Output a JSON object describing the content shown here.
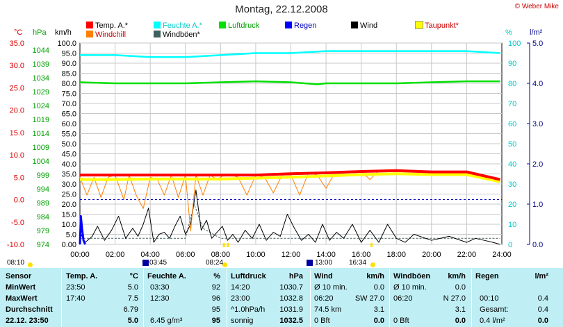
{
  "header": {
    "title": "Montag, 22.12.2008",
    "copyright": "© Weber Mike"
  },
  "legend": [
    {
      "label": "Temp. A.*",
      "color": "#ff0000"
    },
    {
      "label": "Feuchte A.*",
      "color": "#00ffff"
    },
    {
      "label": "Luftdruck",
      "color": "#00e000"
    },
    {
      "label": "Regen",
      "color": "#0000ff"
    },
    {
      "label": "Wind",
      "color": "#000000"
    },
    {
      "label": "Taupunkt*",
      "color": "#ffff00"
    },
    {
      "label": "Windchill",
      "color": "#ff8000"
    },
    {
      "label": "Windböen*",
      "color": "#406060"
    }
  ],
  "axes_units": {
    "temp": "°C",
    "pressure": "hPa",
    "wind": "km/h",
    "humidity": "%",
    "rain": "l/m²"
  },
  "chart_data": {
    "type": "line",
    "x_ticks": [
      "00:00",
      "02:00",
      "04:00",
      "06:00",
      "08:00",
      "10:00",
      "12:00",
      "14:00",
      "16:00",
      "18:00",
      "20:00",
      "22:00",
      "24:00"
    ],
    "temp_axis": [
      "35.0",
      "30.0",
      "25.0",
      "20.0",
      "15.0",
      "10.0",
      "5.0",
      "0.0",
      "-5.0",
      "-10.0"
    ],
    "pressure_axis": [
      "1044",
      "1039",
      "1034",
      "1029",
      "1024",
      "1019",
      "1014",
      "1009",
      "1004",
      "999",
      "994",
      "989",
      "984",
      "979",
      "974"
    ],
    "wind_axis": [
      "100.0",
      "95.0",
      "90.0",
      "85.0",
      "80.0",
      "75.0",
      "70.0",
      "65.0",
      "60.0",
      "55.0",
      "50.0",
      "45.0",
      "40.0",
      "35.0",
      "30.0",
      "25.0",
      "20.0",
      "15.0",
      "10.0",
      "5.0",
      "0.00"
    ],
    "humidity_axis": [
      "100",
      "90",
      "80",
      "70",
      "60",
      "50",
      "40",
      "30",
      "20",
      "10",
      "0"
    ],
    "rain_axis": [
      "5.0",
      "4.0",
      "3.0",
      "2.0",
      "1.0",
      "0.0"
    ],
    "temp_range": [
      -10,
      35
    ],
    "wind_range": [
      0,
      100
    ],
    "series": [
      {
        "name": "Feuchte A.*",
        "axis": "humidity",
        "x": [
          0,
          2,
          4,
          4.5,
          6,
          8,
          10,
          12,
          14,
          16,
          18,
          20,
          22,
          23.9
        ],
        "y": [
          94,
          94,
          93,
          93,
          93,
          94,
          95,
          95,
          96,
          96,
          96,
          96,
          96,
          95
        ]
      },
      {
        "name": "Luftdruck",
        "axis": "humidity",
        "x": [
          0,
          2,
          4,
          6,
          8,
          10,
          12,
          13.5,
          14,
          16,
          18,
          20,
          22,
          23.9
        ],
        "y": [
          80.5,
          80,
          80,
          80,
          80.5,
          81,
          80.5,
          79.5,
          80,
          80,
          80,
          80.5,
          81,
          81
        ]
      },
      {
        "name": "Temp. A.*",
        "axis": "temp",
        "x": [
          0,
          2,
          4,
          6,
          8,
          10,
          12,
          14,
          16,
          18,
          20,
          22,
          23.9
        ],
        "y": [
          5.5,
          5.5,
          5.5,
          5.5,
          5.5,
          5.5,
          5.8,
          6.0,
          6.3,
          6.5,
          6.2,
          6.2,
          4.5
        ]
      },
      {
        "name": "Taupunkt*",
        "axis": "temp",
        "x": [
          0,
          2,
          4,
          6,
          8,
          10,
          12,
          14,
          16,
          18,
          20,
          22,
          23.9
        ],
        "y": [
          4.5,
          4.5,
          4.6,
          4.6,
          4.6,
          4.8,
          5.0,
          5.3,
          5.6,
          5.8,
          5.6,
          5.6,
          4.0
        ]
      },
      {
        "name": "Windchill",
        "axis": "temp",
        "x": [
          0,
          0.4,
          0.8,
          1.2,
          1.6,
          2,
          2.5,
          2.8,
          3.2,
          3.6,
          4,
          4.4,
          4.8,
          5.2,
          5.6,
          6,
          6.3,
          6.6,
          7,
          7.4,
          7.8,
          8.2,
          8.6,
          9,
          9.5,
          10,
          10.5,
          11,
          11.5,
          12,
          12.5,
          13,
          13.5,
          14,
          14.5,
          15,
          16,
          16.5,
          17,
          18,
          20,
          22,
          23.9
        ],
        "y": [
          5.0,
          1.0,
          5.0,
          0.5,
          5.0,
          5.5,
          0.0,
          5.5,
          1.0,
          -2.0,
          5.0,
          4.5,
          1.0,
          5.5,
          0.5,
          5.5,
          -7.0,
          5.5,
          1.0,
          5.5,
          4.5,
          5.5,
          5.5,
          5.0,
          1.0,
          5.5,
          5.0,
          1.5,
          5.5,
          5.5,
          1.0,
          6.0,
          5.5,
          2.5,
          6.0,
          6.0,
          6.3,
          4.5,
          6.5,
          6.5,
          6.2,
          6.2,
          4.5
        ]
      },
      {
        "name": "Wind",
        "axis": "wind",
        "x": [
          0,
          0.3,
          0.7,
          1,
          1.4,
          1.8,
          2.2,
          2.6,
          3,
          3.3,
          3.6,
          3.9,
          4.2,
          4.5,
          4.8,
          5.1,
          5.4,
          5.7,
          6,
          6.3,
          6.6,
          6.9,
          7.2,
          7.5,
          7.8,
          8.1,
          8.4,
          8.7,
          9,
          9.4,
          9.8,
          10.2,
          10.6,
          11,
          11.4,
          11.8,
          12.2,
          12.6,
          13,
          13.4,
          13.8,
          14.2,
          14.6,
          15,
          15.5,
          16,
          16.5,
          17,
          17.5,
          18,
          18.5,
          19,
          20,
          21,
          22,
          22.5,
          23,
          23.5,
          23.9
        ],
        "y": [
          6,
          1,
          4,
          9,
          2,
          7,
          14,
          3,
          8,
          4,
          10,
          18,
          1,
          5,
          6,
          3,
          9,
          14,
          5,
          10,
          27,
          7,
          12,
          3,
          6,
          9,
          2,
          5,
          1,
          7,
          3,
          10,
          2,
          6,
          4,
          15,
          8,
          2,
          5,
          1,
          10,
          2,
          6,
          3,
          10,
          1,
          7,
          1,
          10,
          3,
          1,
          5,
          2,
          4,
          1,
          3,
          2,
          1,
          0
        ]
      },
      {
        "name": "Windböen*",
        "axis": "wind",
        "x": [
          0,
          2,
          4,
          6,
          6.5,
          7,
          8,
          10,
          12,
          14,
          16,
          18,
          20,
          22,
          23.9
        ],
        "y": [
          3,
          3,
          3,
          3,
          20,
          8,
          3,
          3,
          3,
          3,
          3,
          3,
          3,
          3,
          3
        ]
      },
      {
        "name": "Regen",
        "axis": "rain",
        "x": [
          0,
          0.05,
          0.12,
          0.2,
          0.3
        ],
        "y": [
          0,
          0.7,
          0.4,
          0.1,
          0
        ]
      }
    ],
    "events_markers": {
      "sun": [
        "08:10",
        "03:45",
        "08:24",
        "13:00",
        "16:34"
      ]
    },
    "grid": true
  },
  "timeline_labels": [
    {
      "text": "08:10"
    },
    {
      "text": "03:45"
    },
    {
      "text": "08:24"
    },
    {
      "text": "13:00"
    },
    {
      "text": "16:34"
    }
  ],
  "stats": {
    "sensor_headers": [
      "Sensor",
      "MinWert",
      "MaxWert",
      "Durchschnitt",
      "22.12. 23:50"
    ],
    "temp": {
      "header": "Temp. A.",
      "unit": "°C",
      "rows": [
        [
          "23:50",
          "5.0"
        ],
        [
          "17:40",
          "7.5"
        ],
        [
          "",
          "6.79"
        ],
        [
          "",
          "5.0"
        ]
      ]
    },
    "feuchte": {
      "header": "Feuchte A.",
      "unit": "%",
      "rows": [
        [
          "03:30",
          "92"
        ],
        [
          "12:30",
          "96"
        ],
        [
          "",
          "95"
        ],
        [
          "6.45 g/m³",
          "95"
        ]
      ]
    },
    "luftdruck": {
      "header": "Luftdruck",
      "unit": "hPa",
      "rows": [
        [
          "14:20",
          "1030.7"
        ],
        [
          "23:00",
          "1032.8"
        ],
        [
          "^1.0hPa/h",
          "1031.9"
        ],
        [
          "sonnig",
          "1032.5"
        ]
      ]
    },
    "wind": {
      "header": "Wind",
      "unit": "km/h",
      "rows": [
        [
          "Ø 10 min.",
          "0.0"
        ],
        [
          "06:20",
          "SW 27.0"
        ],
        [
          "74.5 km",
          "3.1"
        ],
        [
          "0 Bft",
          "0.0"
        ]
      ]
    },
    "windboeen": {
      "header": "Windböen",
      "unit": "km/h",
      "rows": [
        [
          "Ø 10 min.",
          "0.0"
        ],
        [
          "06:20",
          "N 27.0"
        ],
        [
          "",
          "3.1"
        ],
        [
          "0 Bft",
          "0.0"
        ]
      ]
    },
    "regen": {
      "header": "Regen",
      "unit": "l/m²",
      "rows": [
        [
          "",
          ""
        ],
        [
          "00:10",
          "0.4"
        ],
        [
          "Gesamt:",
          "0.4"
        ],
        [
          "0.4 l/m²",
          "0.0"
        ]
      ]
    }
  }
}
